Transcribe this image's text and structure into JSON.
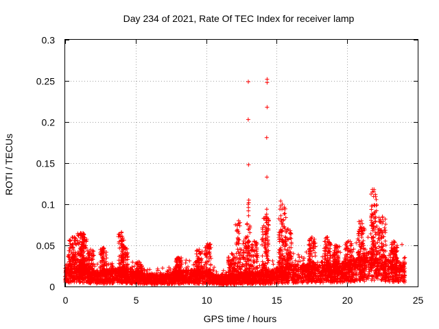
{
  "chart_data": {
    "type": "scatter",
    "title": "Day 234 of 2021, Rate Of TEC Index for receiver lamp",
    "xlabel": "GPS time / hours",
    "ylabel": "ROTI / TECUs",
    "xlim": [
      0,
      25
    ],
    "ylim": [
      0,
      0.3
    ],
    "xticks": [
      0,
      5,
      10,
      15,
      20,
      25
    ],
    "yticks": [
      0,
      0.05,
      0.1,
      0.15,
      0.2,
      0.25,
      0.3
    ],
    "xtick_labels": [
      "0",
      "5",
      "10",
      "15",
      "20",
      "25"
    ],
    "ytick_labels": [
      "0",
      "0.05",
      "0.1",
      "0.15",
      "0.2",
      "0.25",
      "0.3"
    ],
    "grid": true,
    "marker": "+",
    "color": "#ff0000",
    "series": [
      {
        "name": "ROTI",
        "baseline_profile": [
          [
            0.0,
            0.015
          ],
          [
            0.5,
            0.02
          ],
          [
            1.0,
            0.02
          ],
          [
            2.0,
            0.013
          ],
          [
            3.0,
            0.014
          ],
          [
            4.0,
            0.015
          ],
          [
            5.0,
            0.012
          ],
          [
            6.0,
            0.01
          ],
          [
            7.0,
            0.01
          ],
          [
            8.0,
            0.012
          ],
          [
            9.0,
            0.014
          ],
          [
            10.0,
            0.012
          ],
          [
            11.0,
            0.008
          ],
          [
            12.0,
            0.01
          ],
          [
            13.0,
            0.012
          ],
          [
            14.0,
            0.012
          ],
          [
            15.0,
            0.015
          ],
          [
            16.0,
            0.017
          ],
          [
            17.0,
            0.018
          ],
          [
            18.0,
            0.018
          ],
          [
            19.0,
            0.018
          ],
          [
            20.0,
            0.02
          ],
          [
            21.0,
            0.025
          ],
          [
            22.0,
            0.03
          ],
          [
            23.0,
            0.022
          ],
          [
            24.0,
            0.02
          ]
        ],
        "clusters": [
          {
            "x": 0.5,
            "y": 0.06
          },
          {
            "x": 1.1,
            "y": 0.065
          },
          {
            "x": 1.3,
            "y": 0.06
          },
          {
            "x": 1.8,
            "y": 0.045
          },
          {
            "x": 2.7,
            "y": 0.047
          },
          {
            "x": 4.0,
            "y": 0.066
          },
          {
            "x": 4.2,
            "y": 0.048
          },
          {
            "x": 5.2,
            "y": 0.03
          },
          {
            "x": 8.0,
            "y": 0.035
          },
          {
            "x": 9.5,
            "y": 0.045
          },
          {
            "x": 10.1,
            "y": 0.052
          },
          {
            "x": 11.8,
            "y": 0.04
          },
          {
            "x": 12.3,
            "y": 0.08
          },
          {
            "x": 12.8,
            "y": 0.06
          },
          {
            "x": 13.4,
            "y": 0.055
          },
          {
            "x": 14.2,
            "y": 0.085
          },
          {
            "x": 15.4,
            "y": 0.1
          },
          {
            "x": 15.8,
            "y": 0.07
          },
          {
            "x": 17.5,
            "y": 0.06
          },
          {
            "x": 18.6,
            "y": 0.06
          },
          {
            "x": 19.2,
            "y": 0.05
          },
          {
            "x": 20.1,
            "y": 0.055
          },
          {
            "x": 21.0,
            "y": 0.08
          },
          {
            "x": 21.9,
            "y": 0.118
          },
          {
            "x": 22.5,
            "y": 0.085
          },
          {
            "x": 23.3,
            "y": 0.055
          }
        ],
        "spikes": [
          {
            "x": 13.0,
            "values": [
              0.249,
              0.203,
              0.148,
              0.105,
              0.102,
              0.1,
              0.096,
              0.092,
              0.086
            ]
          },
          {
            "x": 14.3,
            "values": [
              0.252,
              0.248,
              0.218,
              0.181,
              0.133,
              0.094,
              0.088,
              0.082,
              0.078
            ]
          },
          {
            "x": 15.3,
            "values": [
              0.104,
              0.098,
              0.086,
              0.08
            ]
          },
          {
            "x": 21.8,
            "values": [
              0.118,
              0.115,
              0.098
            ]
          }
        ]
      }
    ]
  }
}
